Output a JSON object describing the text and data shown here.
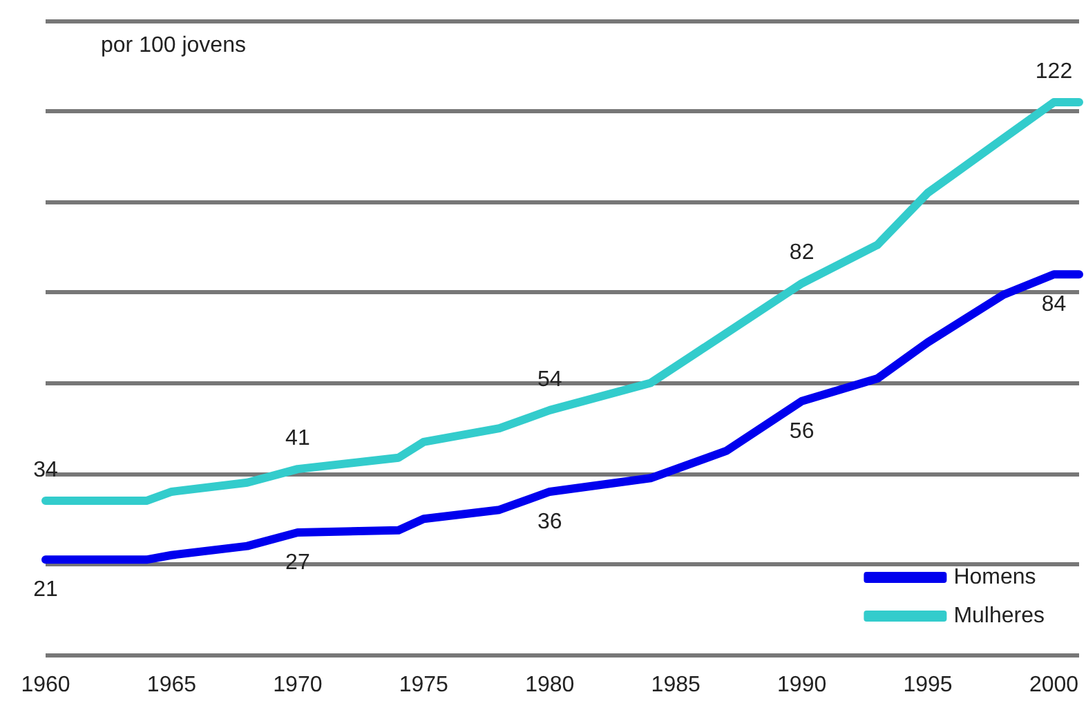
{
  "chart_data": {
    "type": "line",
    "ylabel": "por 100 jovens",
    "x": [
      1960,
      1964,
      1965,
      1968,
      1970,
      1974,
      1975,
      1978,
      1980,
      1984,
      1987,
      1990,
      1993,
      1995,
      1998,
      2000,
      2001
    ],
    "series": [
      {
        "name": "Homens",
        "color": "#0000ee",
        "values": [
          21,
          21,
          22,
          24,
          27,
          27.5,
          30,
          32,
          36,
          39,
          45,
          56,
          61,
          69,
          79.5,
          84,
          84
        ],
        "value_labels": [
          "21",
          null,
          null,
          null,
          "27",
          null,
          null,
          null,
          "36",
          null,
          null,
          "56",
          null,
          null,
          null,
          "84",
          null
        ]
      },
      {
        "name": "Mulheres",
        "color": "#33cccc",
        "values": [
          34,
          34,
          36,
          38,
          41,
          43.5,
          47,
          50,
          54,
          60,
          71,
          82,
          90.5,
          102,
          114,
          122,
          122
        ],
        "value_labels": [
          "34",
          null,
          null,
          null,
          "41",
          null,
          null,
          null,
          "54",
          null,
          null,
          "82",
          null,
          null,
          null,
          "122",
          null
        ]
      }
    ],
    "xlim": [
      1960,
      2001
    ],
    "xticks": [
      1960,
      1965,
      1970,
      1975,
      1980,
      1985,
      1990,
      1995,
      2000
    ],
    "ylim": [
      0,
      140
    ],
    "yticks": [
      {
        "value": 0,
        "label": null
      },
      {
        "value": 20,
        "label": null
      },
      {
        "value": 40,
        "label": null
      },
      {
        "value": 60,
        "label": null
      },
      {
        "value": 80,
        "label": null
      },
      {
        "value": 100,
        "label": null
      },
      {
        "value": 120,
        "label": null
      },
      {
        "value": 140,
        "label": null
      }
    ],
    "tick_labels": "x",
    "grid": "y",
    "legend": "bottom right",
    "marker": "none",
    "line_style": "solid"
  }
}
